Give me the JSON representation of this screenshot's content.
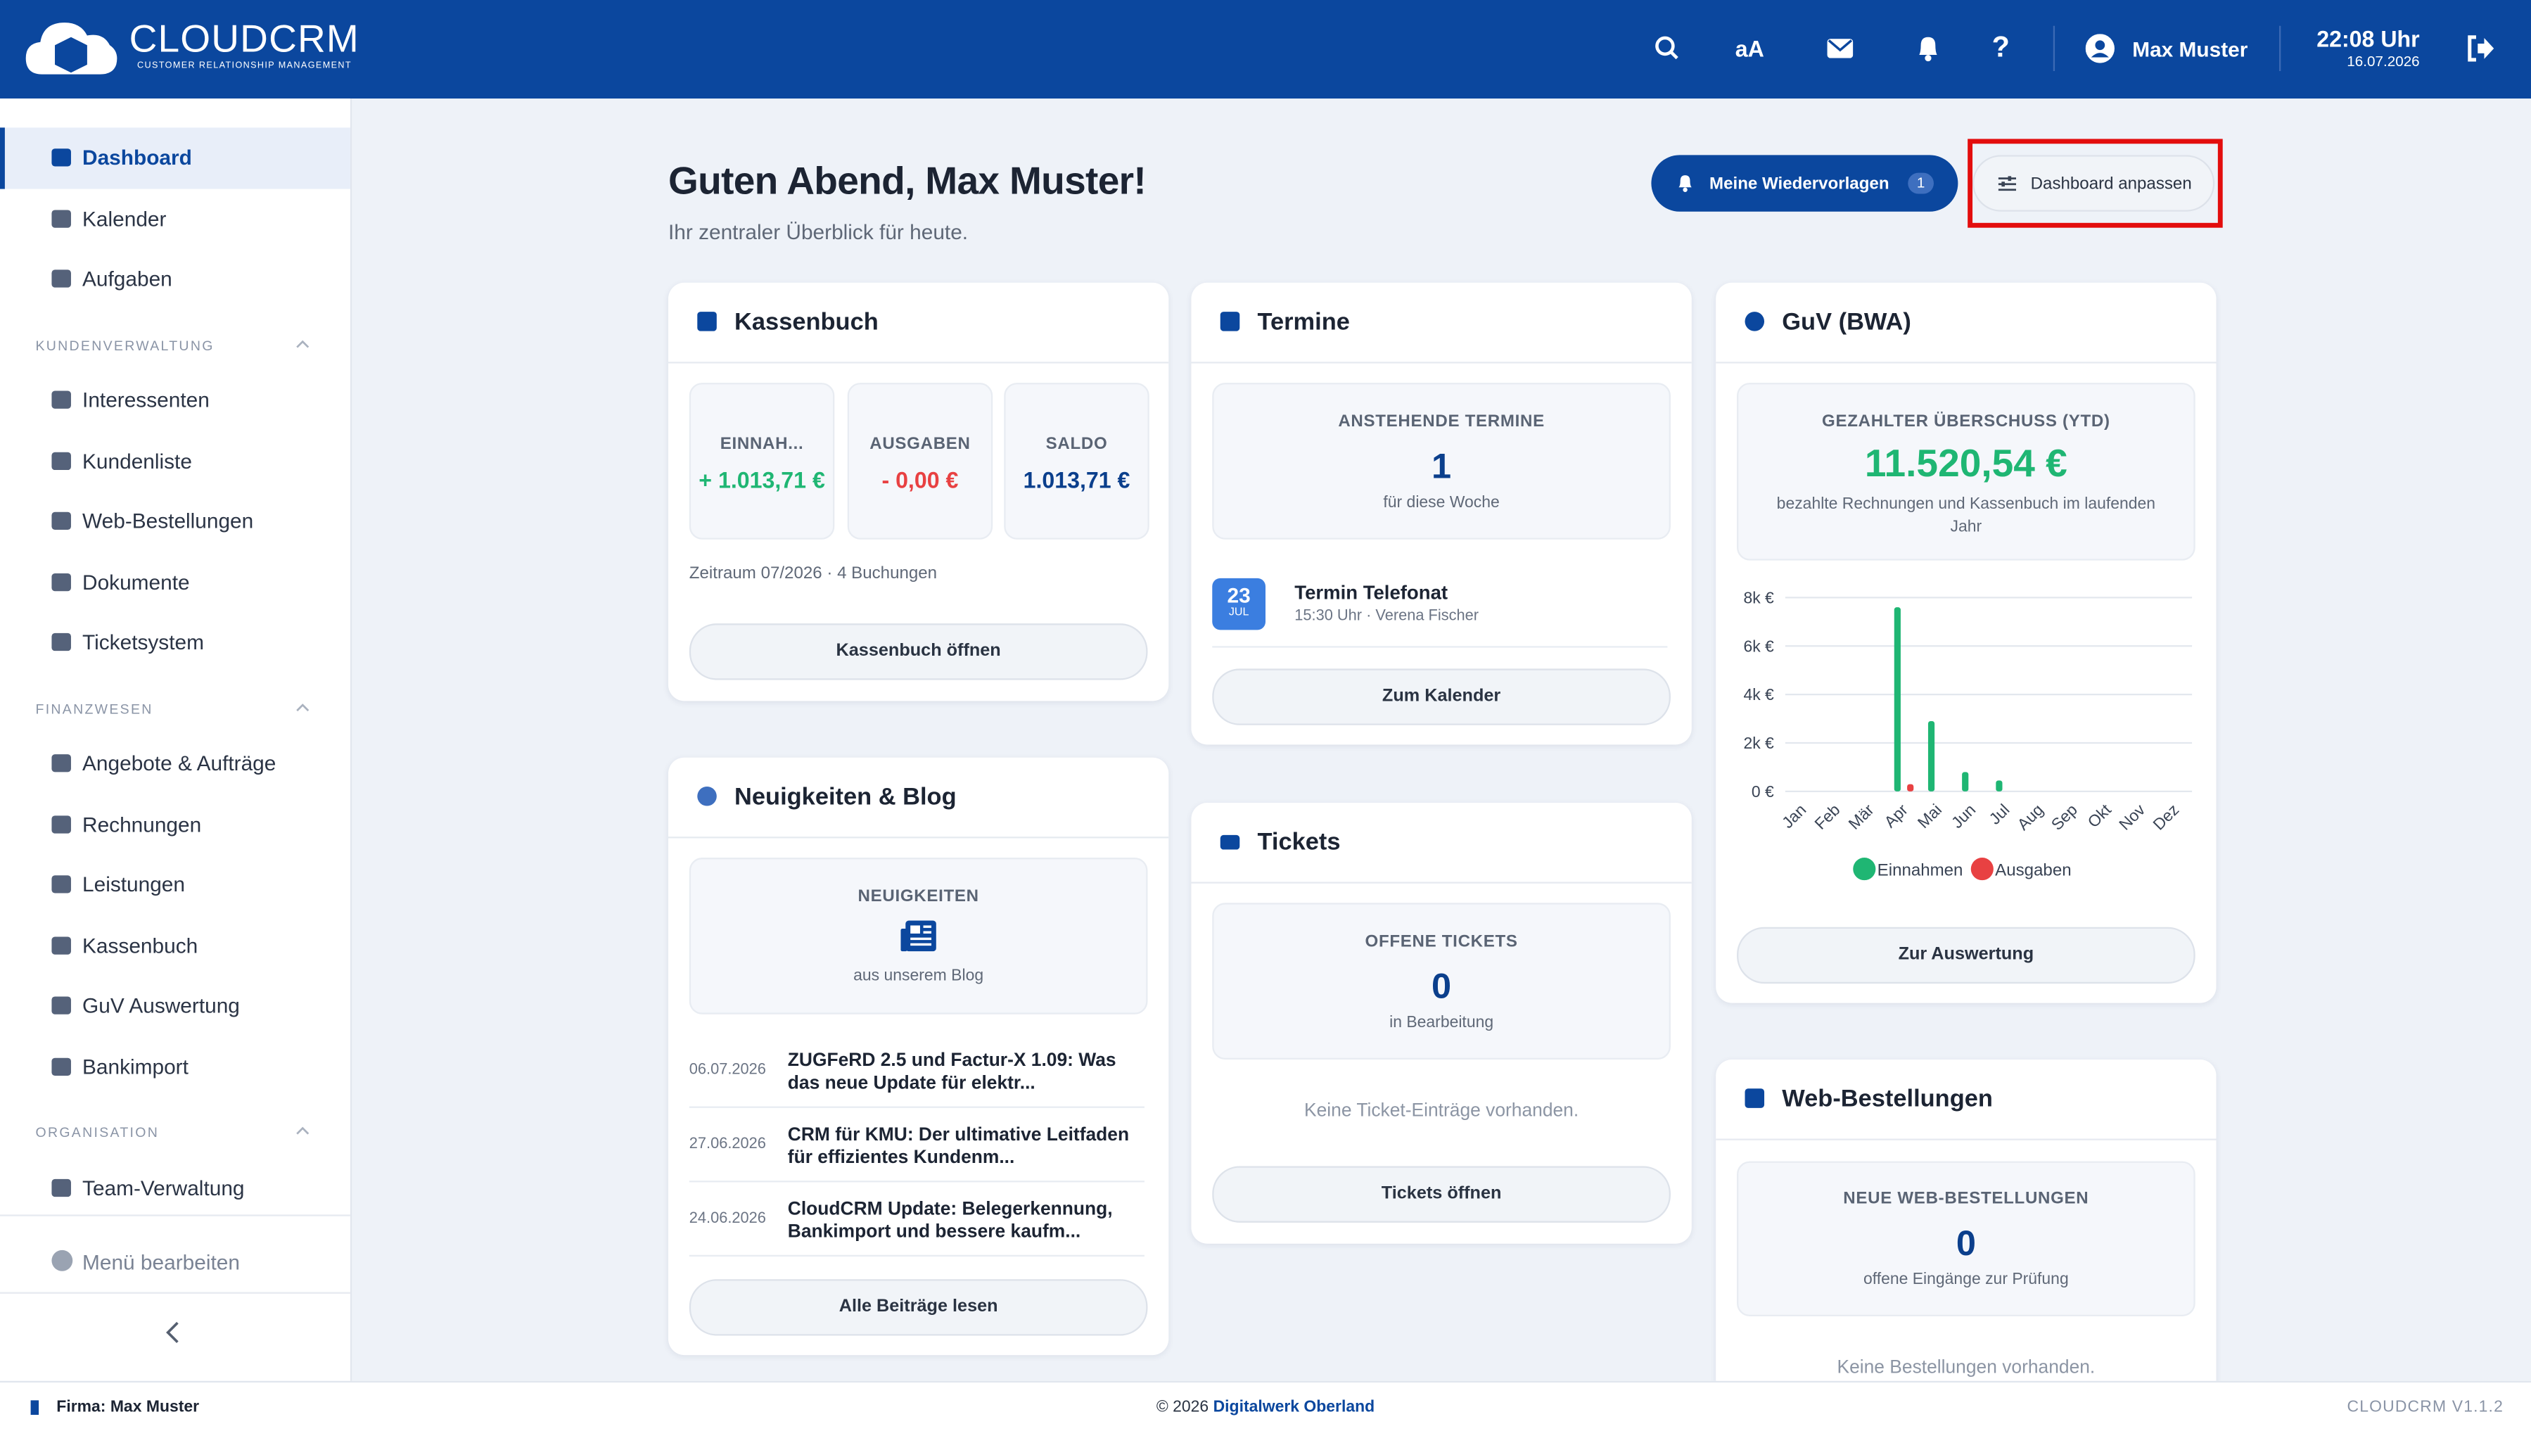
{
  "header": {
    "brand": "CLOUDCRM",
    "tagline": "CUSTOMER RELATIONSHIP MANAGEMENT",
    "font_toggle": "aA",
    "help": "?",
    "user": "Max Muster",
    "time": "22:08 Uhr",
    "date": "16.07.2026"
  },
  "sidebar": {
    "top": [
      {
        "label": "Dashboard",
        "active": true
      },
      {
        "label": "Kalender",
        "active": false
      },
      {
        "label": "Aufgaben",
        "active": false
      }
    ],
    "sections": [
      {
        "title": "KUNDENVERWALTUNG",
        "items": [
          "Interessenten",
          "Kundenliste",
          "Web-Bestellungen",
          "Dokumente",
          "Ticketsystem"
        ]
      },
      {
        "title": "FINANZWESEN",
        "items": [
          "Angebote & Aufträge",
          "Rechnungen",
          "Leistungen",
          "Kassenbuch",
          "GuV Auswertung",
          "Bankimport"
        ]
      },
      {
        "title": "ORGANISATION",
        "items": [
          "Team-Verwaltung"
        ]
      }
    ],
    "edit_menu": "Menü bearbeiten"
  },
  "main": {
    "greeting": "Guten Abend, Max Muster!",
    "subtitle": "Ihr zentraler Überblick für heute.",
    "reminders": {
      "label": "Meine Wiedervorlagen",
      "count": 1
    },
    "customize": "Dashboard anpassen"
  },
  "kassenbuch": {
    "title": "Kassenbuch",
    "stats": [
      {
        "label": "EINNAH...",
        "value": "+ 1.013,71 €"
      },
      {
        "label": "AUSGABEN",
        "value": "- 0,00 €"
      },
      {
        "label": "SALDO",
        "value": "1.013,71 €"
      }
    ],
    "period": "Zeitraum 07/2026 · 4 Buchungen",
    "button": "Kassenbuch öffnen"
  },
  "news": {
    "title": "Neuigkeiten & Blog",
    "label": "NEUIGKEITEN",
    "sub": "aus unserem Blog",
    "items": [
      {
        "date": "06.07.2026",
        "title": "ZUGFeRD 2.5 und Factur-X 1.09: Was das neue Update für elektr..."
      },
      {
        "date": "27.06.2026",
        "title": "CRM für KMU: Der ultimative Leitfaden für effizientes Kundenm..."
      },
      {
        "date": "24.06.2026",
        "title": "CloudCRM Update: Belegerkennung, Bankimport und bessere kaufm..."
      }
    ],
    "button": "Alle Beiträge lesen"
  },
  "termine": {
    "title": "Termine",
    "label": "ANSTEHENDE TERMINE",
    "count": 1,
    "sub": "für diese Woche",
    "event": {
      "day": "23",
      "month": "JUL",
      "title": "Termin Telefonat",
      "detail": "15:30 Uhr · Verena Fischer"
    },
    "button": "Zum Kalender"
  },
  "tickets": {
    "title": "Tickets",
    "label": "OFFENE TICKETS",
    "count": 0,
    "sub": "in Bearbeitung",
    "empty": "Keine Ticket-Einträge vorhanden.",
    "button": "Tickets öffnen"
  },
  "guv": {
    "title": "GuV (BWA)",
    "label": "GEZAHLTER ÜBERSCHUSS (YTD)",
    "value": "11.520,54 €",
    "desc": "bezahlte Rechnungen und Kassenbuch im laufenden Jahr",
    "chart": {
      "type": "bar",
      "categories": [
        "Jan",
        "Feb",
        "Mär",
        "Apr",
        "Mai",
        "Jun",
        "Jul",
        "Aug",
        "Sep",
        "Okt",
        "Nov",
        "Dez"
      ],
      "series": [
        {
          "name": "Einnahmen",
          "color": "#1fb673",
          "values": [
            0,
            0,
            0,
            7600,
            2900,
            800,
            450,
            0,
            0,
            0,
            0,
            0
          ]
        },
        {
          "name": "Ausgaben",
          "color": "#e84142",
          "values": [
            0,
            0,
            0,
            300,
            0,
            0,
            0,
            0,
            0,
            0,
            0,
            0
          ]
        }
      ],
      "ylim": [
        0,
        8000
      ],
      "yticks": [
        {
          "value": 0,
          "label": "0 €"
        },
        {
          "value": 2000,
          "label": "2k €"
        },
        {
          "value": 4000,
          "label": "4k €"
        },
        {
          "value": 6000,
          "label": "6k €"
        },
        {
          "value": 8000,
          "label": "8k €"
        }
      ],
      "grid": true
    },
    "button": "Zur Auswertung"
  },
  "web_orders": {
    "title": "Web-Bestellungen",
    "label": "NEUE WEB-BESTELLUNGEN",
    "count": 0,
    "sub": "offene Eingänge zur Prüfung",
    "empty": "Keine Bestellungen vorhanden."
  },
  "footer": {
    "company": "Firma: Max Muster",
    "copyright": "© 2026",
    "link": "Digitalwerk Oberland",
    "version": "CLOUDCRM V1.1.2"
  }
}
